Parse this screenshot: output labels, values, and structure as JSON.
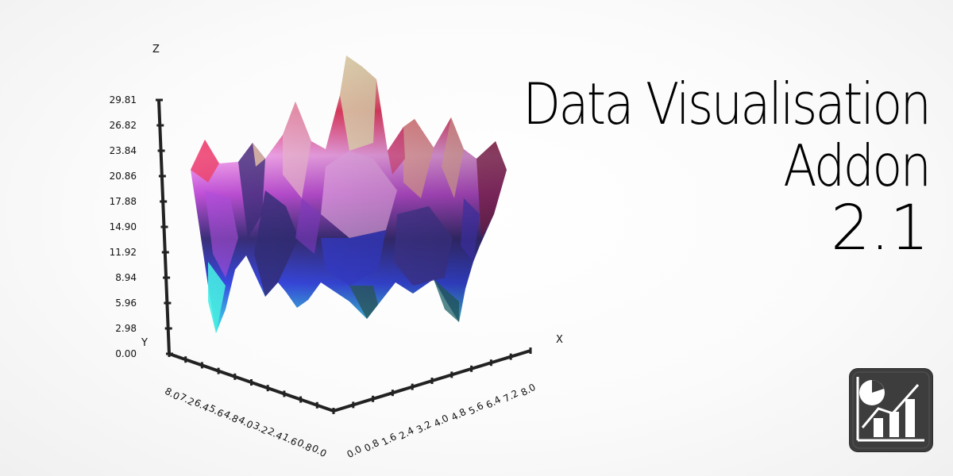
{
  "title": {
    "line1": "Data Visualisation",
    "line2": "Addon",
    "line3": "2.1"
  },
  "icon": "chart-addon-icon",
  "chart_data": {
    "type": "surface",
    "axes": {
      "x_label": "X",
      "y_label": "Y",
      "z_label": "Z",
      "x_ticks": [
        "0.0",
        "0.8",
        "1.6",
        "2.4",
        "3.2",
        "4.0",
        "4.8",
        "5.6",
        "6.4",
        "7.2",
        "8.0"
      ],
      "y_ticks": [
        "8.0",
        "7.2",
        "6.4",
        "5.6",
        "4.8",
        "4.0",
        "3.2",
        "2.4",
        "1.6",
        "0.8",
        "0.0"
      ],
      "z_ticks": [
        "0.00",
        "2.98",
        "5.96",
        "8.94",
        "11.92",
        "14.90",
        "17.88",
        "20.86",
        "23.84",
        "26.82",
        "29.81"
      ],
      "x_range": [
        0,
        8
      ],
      "y_range": [
        0,
        8
      ],
      "z_range": [
        0,
        29.81
      ]
    },
    "grid": false,
    "legend": "none",
    "colormap": [
      "#40f0e8",
      "#3a4ae8",
      "#3a2f7a",
      "#c050d8",
      "#f8a8f0",
      "#f04068",
      "#f8f0c8"
    ]
  }
}
